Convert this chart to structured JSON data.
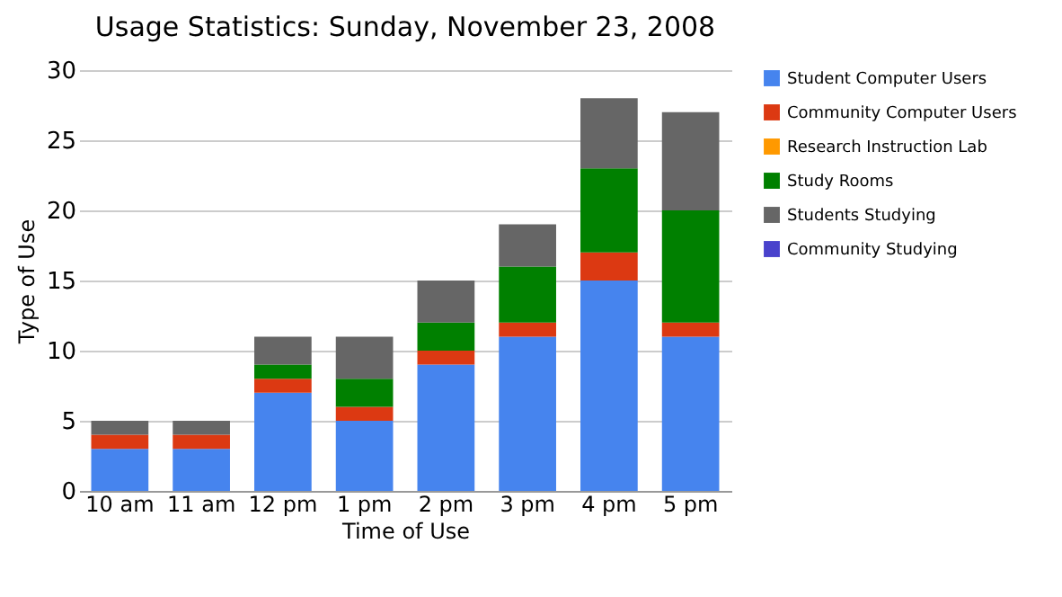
{
  "chart_data": {
    "type": "bar",
    "title": "Usage Statistics: Sunday, November 23, 2008",
    "xlabel": "Time of Use",
    "ylabel": "Type of Use",
    "categories": [
      "10 am",
      "11 am",
      "12 pm",
      "1 pm",
      "2 pm",
      "3 pm",
      "4 pm",
      "5 pm"
    ],
    "stacked": true,
    "ylim": [
      0,
      30
    ],
    "yticks": [
      0,
      5,
      10,
      15,
      20,
      25,
      30
    ],
    "grid": "y",
    "legend": "right",
    "series": [
      {
        "name": "Student Computer Users",
        "color": "#4684ee",
        "values": [
          3,
          3,
          7,
          5,
          9,
          11,
          15,
          11
        ]
      },
      {
        "name": "Community Computer Users",
        "color": "#dc3912",
        "values": [
          1,
          1,
          1,
          1,
          1,
          1,
          2,
          1
        ]
      },
      {
        "name": "Research Instruction Lab",
        "color": "#ff9900",
        "values": [
          0,
          0,
          0,
          0,
          0,
          0,
          0,
          0
        ]
      },
      {
        "name": "Study Rooms",
        "color": "#008000",
        "values": [
          0,
          0,
          1,
          2,
          2,
          4,
          6,
          8
        ]
      },
      {
        "name": "Students Studying",
        "color": "#666666",
        "values": [
          1,
          1,
          2,
          3,
          3,
          3,
          5,
          7
        ]
      },
      {
        "name": "Community Studying",
        "color": "#4942cc",
        "values": [
          0,
          0,
          0,
          0,
          0,
          0,
          0,
          0
        ]
      }
    ]
  }
}
